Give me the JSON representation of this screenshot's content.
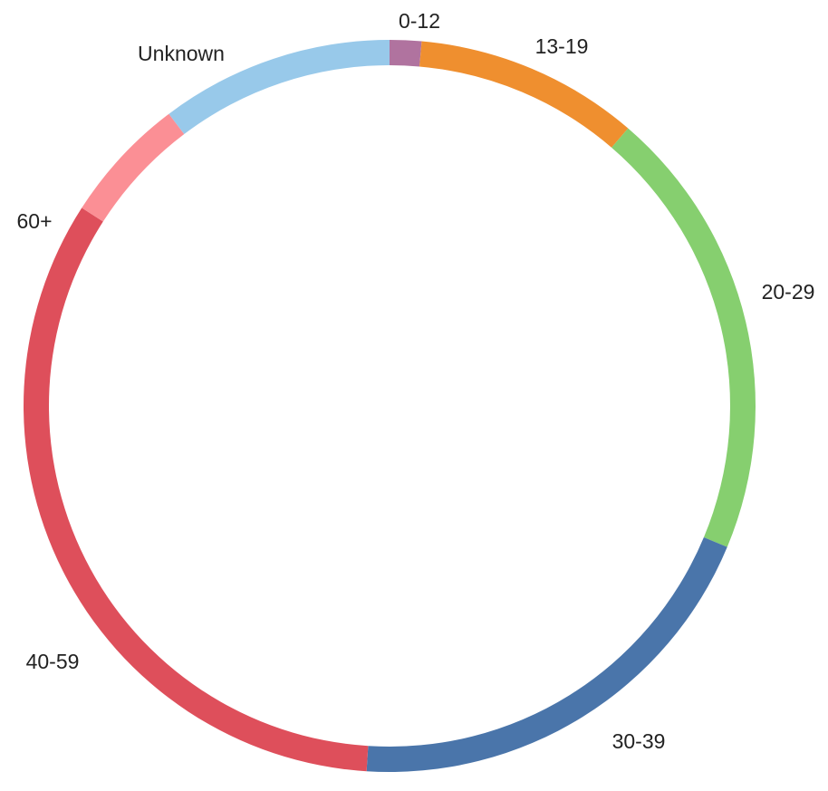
{
  "chart_data": {
    "type": "pie",
    "style": "donut",
    "categories": [
      "0-12",
      "13-19",
      "20-29",
      "30-39",
      "40-59",
      "60+",
      "Unknown"
    ],
    "values": [
      1.4,
      9.9,
      20.0,
      19.7,
      33.1,
      5.6,
      10.3
    ],
    "colors": [
      "#b0739f",
      "#ef8f2f",
      "#86cf6f",
      "#4a75aa",
      "#de4f5b",
      "#fb8f95",
      "#98c9ea"
    ],
    "title": "",
    "legend": "none, labels next to slices"
  }
}
